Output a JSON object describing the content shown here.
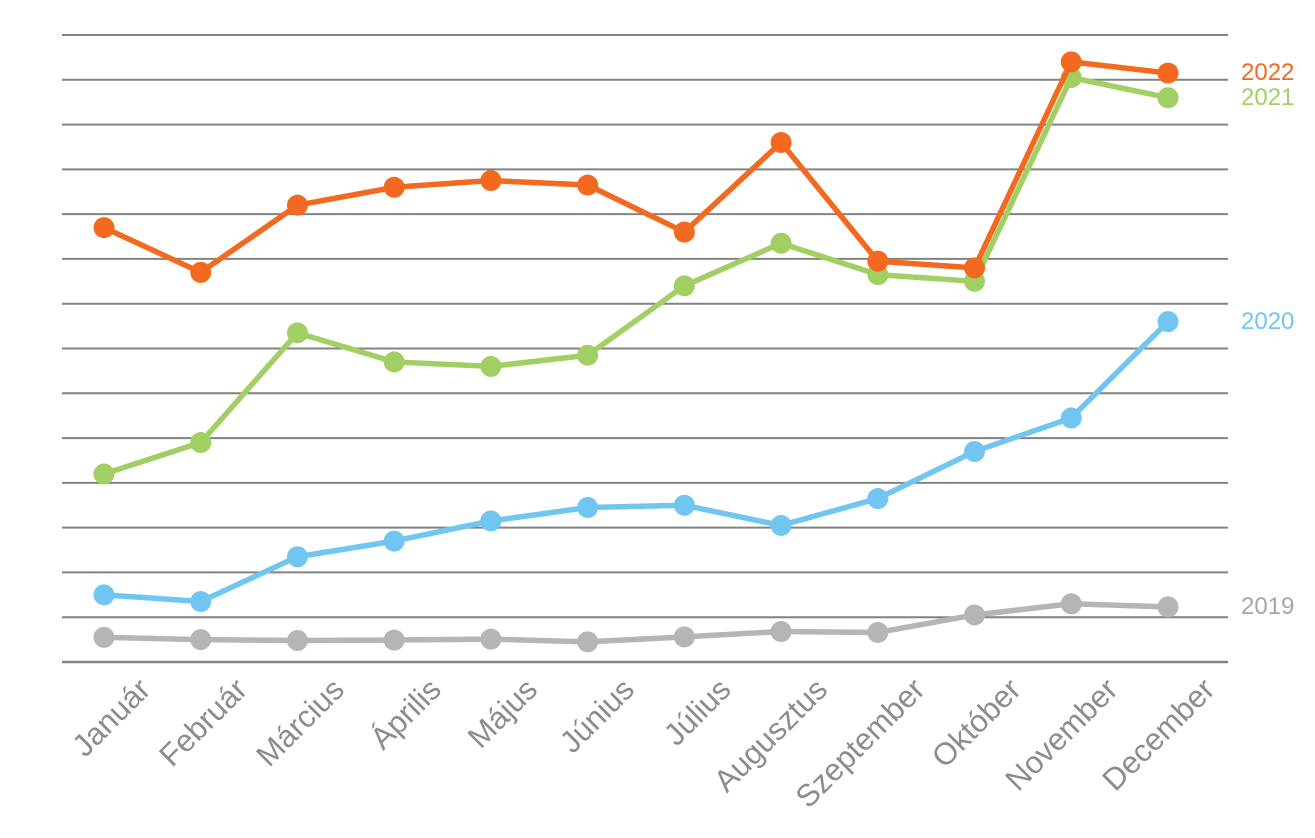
{
  "chart_data": {
    "type": "line",
    "title": "",
    "xlabel": "",
    "ylabel": "",
    "categories": [
      "Január",
      "Február",
      "Március",
      "Április",
      "Május",
      "Június",
      "Július",
      "Augusztus",
      "Szeptember",
      "Október",
      "November",
      "December"
    ],
    "series": [
      {
        "name": "2022",
        "color": "#F2691F",
        "values": [
          9.7,
          8.7,
          10.2,
          10.6,
          10.75,
          10.65,
          9.6,
          11.6,
          8.95,
          8.8,
          13.4,
          13.15
        ]
      },
      {
        "name": "2021",
        "color": "#A2CF63",
        "values": [
          4.2,
          4.9,
          7.35,
          6.7,
          6.6,
          6.85,
          8.4,
          9.35,
          8.65,
          8.5,
          13.05,
          12.6
        ]
      },
      {
        "name": "2020",
        "color": "#70C6F0",
        "values": [
          1.5,
          1.35,
          2.35,
          2.7,
          3.15,
          3.45,
          3.5,
          3.05,
          3.65,
          4.7,
          5.45,
          7.6
        ]
      },
      {
        "name": "2019",
        "color": "#B5B5B5",
        "values": [
          0.55,
          0.5,
          0.48,
          0.49,
          0.51,
          0.45,
          0.56,
          0.68,
          0.66,
          1.05,
          1.3,
          1.23
        ]
      }
    ],
    "ylim": [
      0,
      14
    ],
    "y_tick_labels": [],
    "grid": true,
    "gridline_count": 15,
    "gridline_color": "#828282",
    "x_tick_label_color": "#8C8C8C",
    "x_tick_label_rotation_deg": 45,
    "legend_position": "right-of-line-ends",
    "legend_labels": [
      "2022",
      "2021",
      "2020",
      "2019"
    ]
  }
}
